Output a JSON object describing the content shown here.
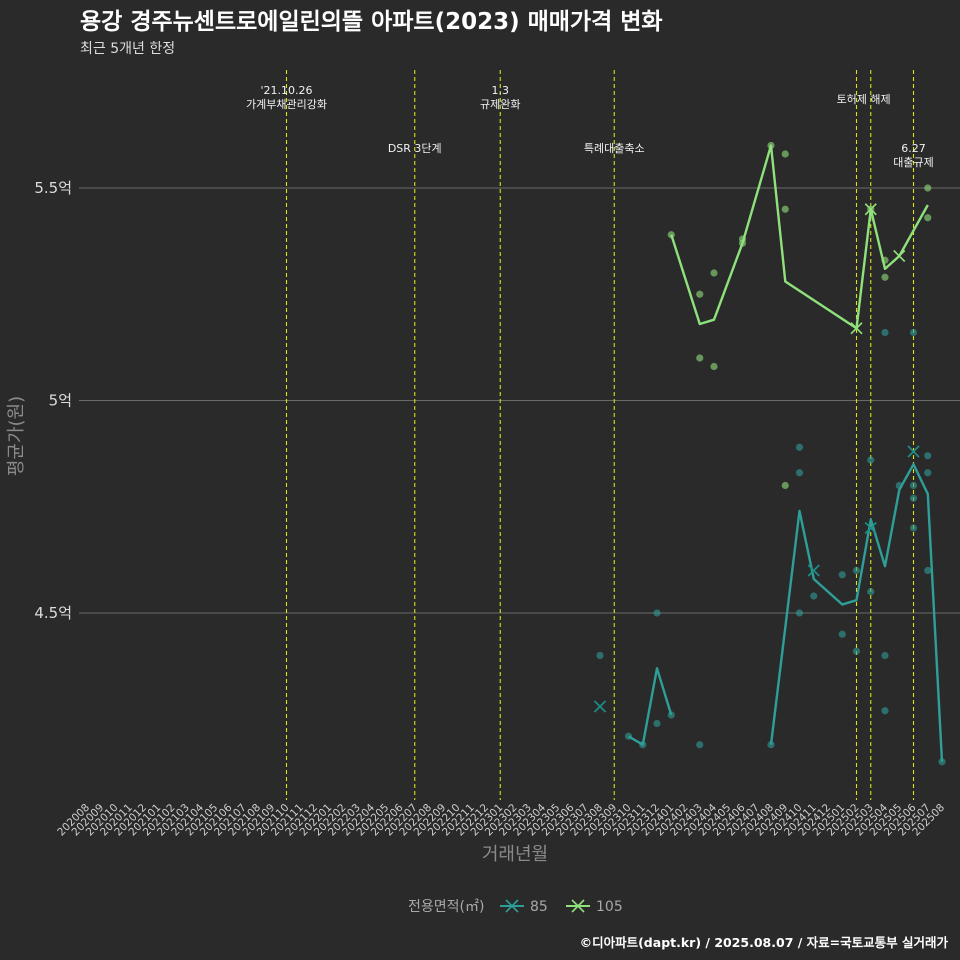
{
  "chart_data": {
    "type": "line",
    "title": "용강 경주뉴센트로에일린의뜰 아파트(2023) 매매가격 변화",
    "subtitle": "최근 5개년 한정",
    "xlabel": "거래년월",
    "ylabel": "평균가(원)",
    "ylim": [
      4.0,
      5.8
    ],
    "yticks": [
      {
        "value": 4.5,
        "label": "4.5억"
      },
      {
        "value": 5.0,
        "label": "5억"
      },
      {
        "value": 5.5,
        "label": "5.5억"
      }
    ],
    "grid": true,
    "categories": [
      "202008",
      "202009",
      "202010",
      "202011",
      "202012",
      "202101",
      "202102",
      "202103",
      "202104",
      "202105",
      "202106",
      "202107",
      "202108",
      "202109",
      "202110",
      "202111",
      "202112",
      "202201",
      "202202",
      "202203",
      "202204",
      "202205",
      "202206",
      "202207",
      "202208",
      "202209",
      "202210",
      "202211",
      "202212",
      "202301",
      "202302",
      "202303",
      "202304",
      "202305",
      "202306",
      "202307",
      "202308",
      "202309",
      "202310",
      "202311",
      "202312",
      "202401",
      "202402",
      "202403",
      "202404",
      "202405",
      "202406",
      "202407",
      "202408",
      "202409",
      "202410",
      "202411",
      "202412",
      "202501",
      "202502",
      "202503",
      "202504",
      "202505",
      "202506",
      "202507",
      "202508"
    ],
    "legend": {
      "title": "전용면적(㎡)",
      "position": "bottom"
    },
    "series": [
      {
        "name": "85",
        "color": "#2e9f98",
        "line": [
          {
            "x": "202310",
            "y": 4.21
          },
          {
            "x": "202311",
            "y": 4.19
          },
          {
            "x": "202312",
            "y": 4.37
          },
          {
            "x": "202401",
            "y": 4.26
          },
          {
            "x": "202408",
            "y": 4.19
          },
          {
            "x": "202410",
            "y": 4.74
          },
          {
            "x": "202411",
            "y": 4.58
          },
          {
            "x": "202501",
            "y": 4.52
          },
          {
            "x": "202502",
            "y": 4.53
          },
          {
            "x": "202503",
            "y": 4.72
          },
          {
            "x": "202504",
            "y": 4.61
          },
          {
            "x": "202505",
            "y": 4.79
          },
          {
            "x": "202506",
            "y": 4.85
          },
          {
            "x": "202507",
            "y": 4.78
          },
          {
            "x": "202508",
            "y": 4.15
          }
        ],
        "crosses": [
          {
            "x": "202308",
            "y": 4.28
          },
          {
            "x": "202411",
            "y": 4.6
          },
          {
            "x": "202503",
            "y": 4.7
          },
          {
            "x": "202506",
            "y": 4.88
          }
        ],
        "points": [
          {
            "x": "202308",
            "y": 4.4
          },
          {
            "x": "202310",
            "y": 4.21
          },
          {
            "x": "202311",
            "y": 4.19
          },
          {
            "x": "202312",
            "y": 4.5
          },
          {
            "x": "202312",
            "y": 4.24
          },
          {
            "x": "202401",
            "y": 4.26
          },
          {
            "x": "202403",
            "y": 4.19
          },
          {
            "x": "202408",
            "y": 4.19
          },
          {
            "x": "202410",
            "y": 4.89
          },
          {
            "x": "202410",
            "y": 4.83
          },
          {
            "x": "202410",
            "y": 4.5
          },
          {
            "x": "202411",
            "y": 4.54
          },
          {
            "x": "202501",
            "y": 4.59
          },
          {
            "x": "202501",
            "y": 4.45
          },
          {
            "x": "202502",
            "y": 4.6
          },
          {
            "x": "202502",
            "y": 4.41
          },
          {
            "x": "202503",
            "y": 4.86
          },
          {
            "x": "202503",
            "y": 4.55
          },
          {
            "x": "202504",
            "y": 5.16
          },
          {
            "x": "202504",
            "y": 4.4
          },
          {
            "x": "202504",
            "y": 4.27
          },
          {
            "x": "202505",
            "y": 4.8
          },
          {
            "x": "202506",
            "y": 5.16
          },
          {
            "x": "202506",
            "y": 4.8
          },
          {
            "x": "202506",
            "y": 4.77
          },
          {
            "x": "202506",
            "y": 4.7
          },
          {
            "x": "202507",
            "y": 4.87
          },
          {
            "x": "202507",
            "y": 4.83
          },
          {
            "x": "202507",
            "y": 4.6
          },
          {
            "x": "202508",
            "y": 4.15
          }
        ]
      },
      {
        "name": "105",
        "color": "#8fe17c",
        "line": [
          {
            "x": "202401",
            "y": 5.39
          },
          {
            "x": "202403",
            "y": 5.18
          },
          {
            "x": "202404",
            "y": 5.19
          },
          {
            "x": "202406",
            "y": 5.37
          },
          {
            "x": "202408",
            "y": 5.6
          },
          {
            "x": "202409",
            "y": 5.28
          },
          {
            "x": "202502",
            "y": 5.17
          },
          {
            "x": "202503",
            "y": 5.45
          },
          {
            "x": "202504",
            "y": 5.31
          },
          {
            "x": "202505",
            "y": 5.34
          },
          {
            "x": "202507",
            "y": 5.46
          }
        ],
        "crosses": [
          {
            "x": "202502",
            "y": 5.17
          },
          {
            "x": "202503",
            "y": 5.45
          },
          {
            "x": "202505",
            "y": 5.34
          }
        ],
        "points": [
          {
            "x": "202401",
            "y": 5.39
          },
          {
            "x": "202403",
            "y": 5.25
          },
          {
            "x": "202403",
            "y": 5.1
          },
          {
            "x": "202404",
            "y": 5.3
          },
          {
            "x": "202404",
            "y": 5.08
          },
          {
            "x": "202406",
            "y": 5.38
          },
          {
            "x": "202406",
            "y": 5.37
          },
          {
            "x": "202408",
            "y": 5.6
          },
          {
            "x": "202409",
            "y": 5.58
          },
          {
            "x": "202409",
            "y": 5.45
          },
          {
            "x": "202409",
            "y": 4.8
          },
          {
            "x": "202503",
            "y": 5.45
          },
          {
            "x": "202504",
            "y": 5.33
          },
          {
            "x": "202504",
            "y": 5.29
          },
          {
            "x": "202507",
            "y": 5.5
          },
          {
            "x": "202507",
            "y": 5.43
          }
        ]
      }
    ],
    "annotations": [
      {
        "x": "202110",
        "lines": [
          "'21.10.26",
          "가계부채관리강화"
        ],
        "level": "top"
      },
      {
        "x": "202207",
        "lines": [
          "DSR 3단계"
        ],
        "level": "mid"
      },
      {
        "x": "202301",
        "lines": [
          "1.3",
          "규제완화"
        ],
        "level": "top"
      },
      {
        "x": "202309",
        "lines": [
          "특례대출축소"
        ],
        "level": "mid"
      },
      {
        "x": "202502",
        "lines": [
          "토허제 해제"
        ],
        "level": "high",
        "anchor": "202503"
      },
      {
        "x": "202503",
        "lines": [],
        "level": "none"
      },
      {
        "x": "202506",
        "lines": [
          "6.27",
          "대출규제"
        ],
        "level": "mid"
      }
    ]
  },
  "caption": "©디아파트(dapt.kr) / 2025.08.07 / 자료=국토교통부 실거래가"
}
